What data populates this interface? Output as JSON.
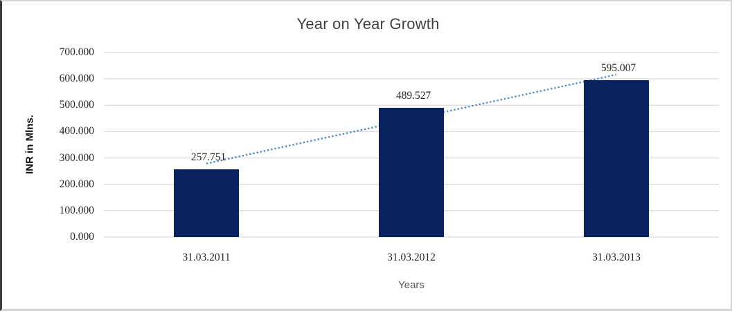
{
  "chart_data": {
    "type": "bar",
    "title": "Year on Year Growth",
    "xlabel": "Years",
    "ylabel": "INR in Mlns.",
    "categories": [
      "31.03.2011",
      "31.03.2012",
      "31.03.2013"
    ],
    "values": [
      257.751,
      489.527,
      595.007
    ],
    "value_labels": [
      "257.751",
      "489.527",
      "595.007"
    ],
    "ytick_labels": [
      "700.000",
      "600.000",
      "500.000",
      "400.000",
      "300.000",
      "200.000",
      "100.000",
      "0.000"
    ],
    "ylim": [
      0,
      700
    ],
    "grid": true,
    "legend": "none",
    "trendline": {
      "type": "linear",
      "style": "dotted"
    },
    "colors": {
      "bar": "#08235f",
      "trendline": "#4e86c8",
      "gridline": "#d9d9d9",
      "title_text": "#404040",
      "tick_text": "#262626",
      "xlabel_text": "#595959",
      "ylabel_text": "#111111"
    }
  }
}
